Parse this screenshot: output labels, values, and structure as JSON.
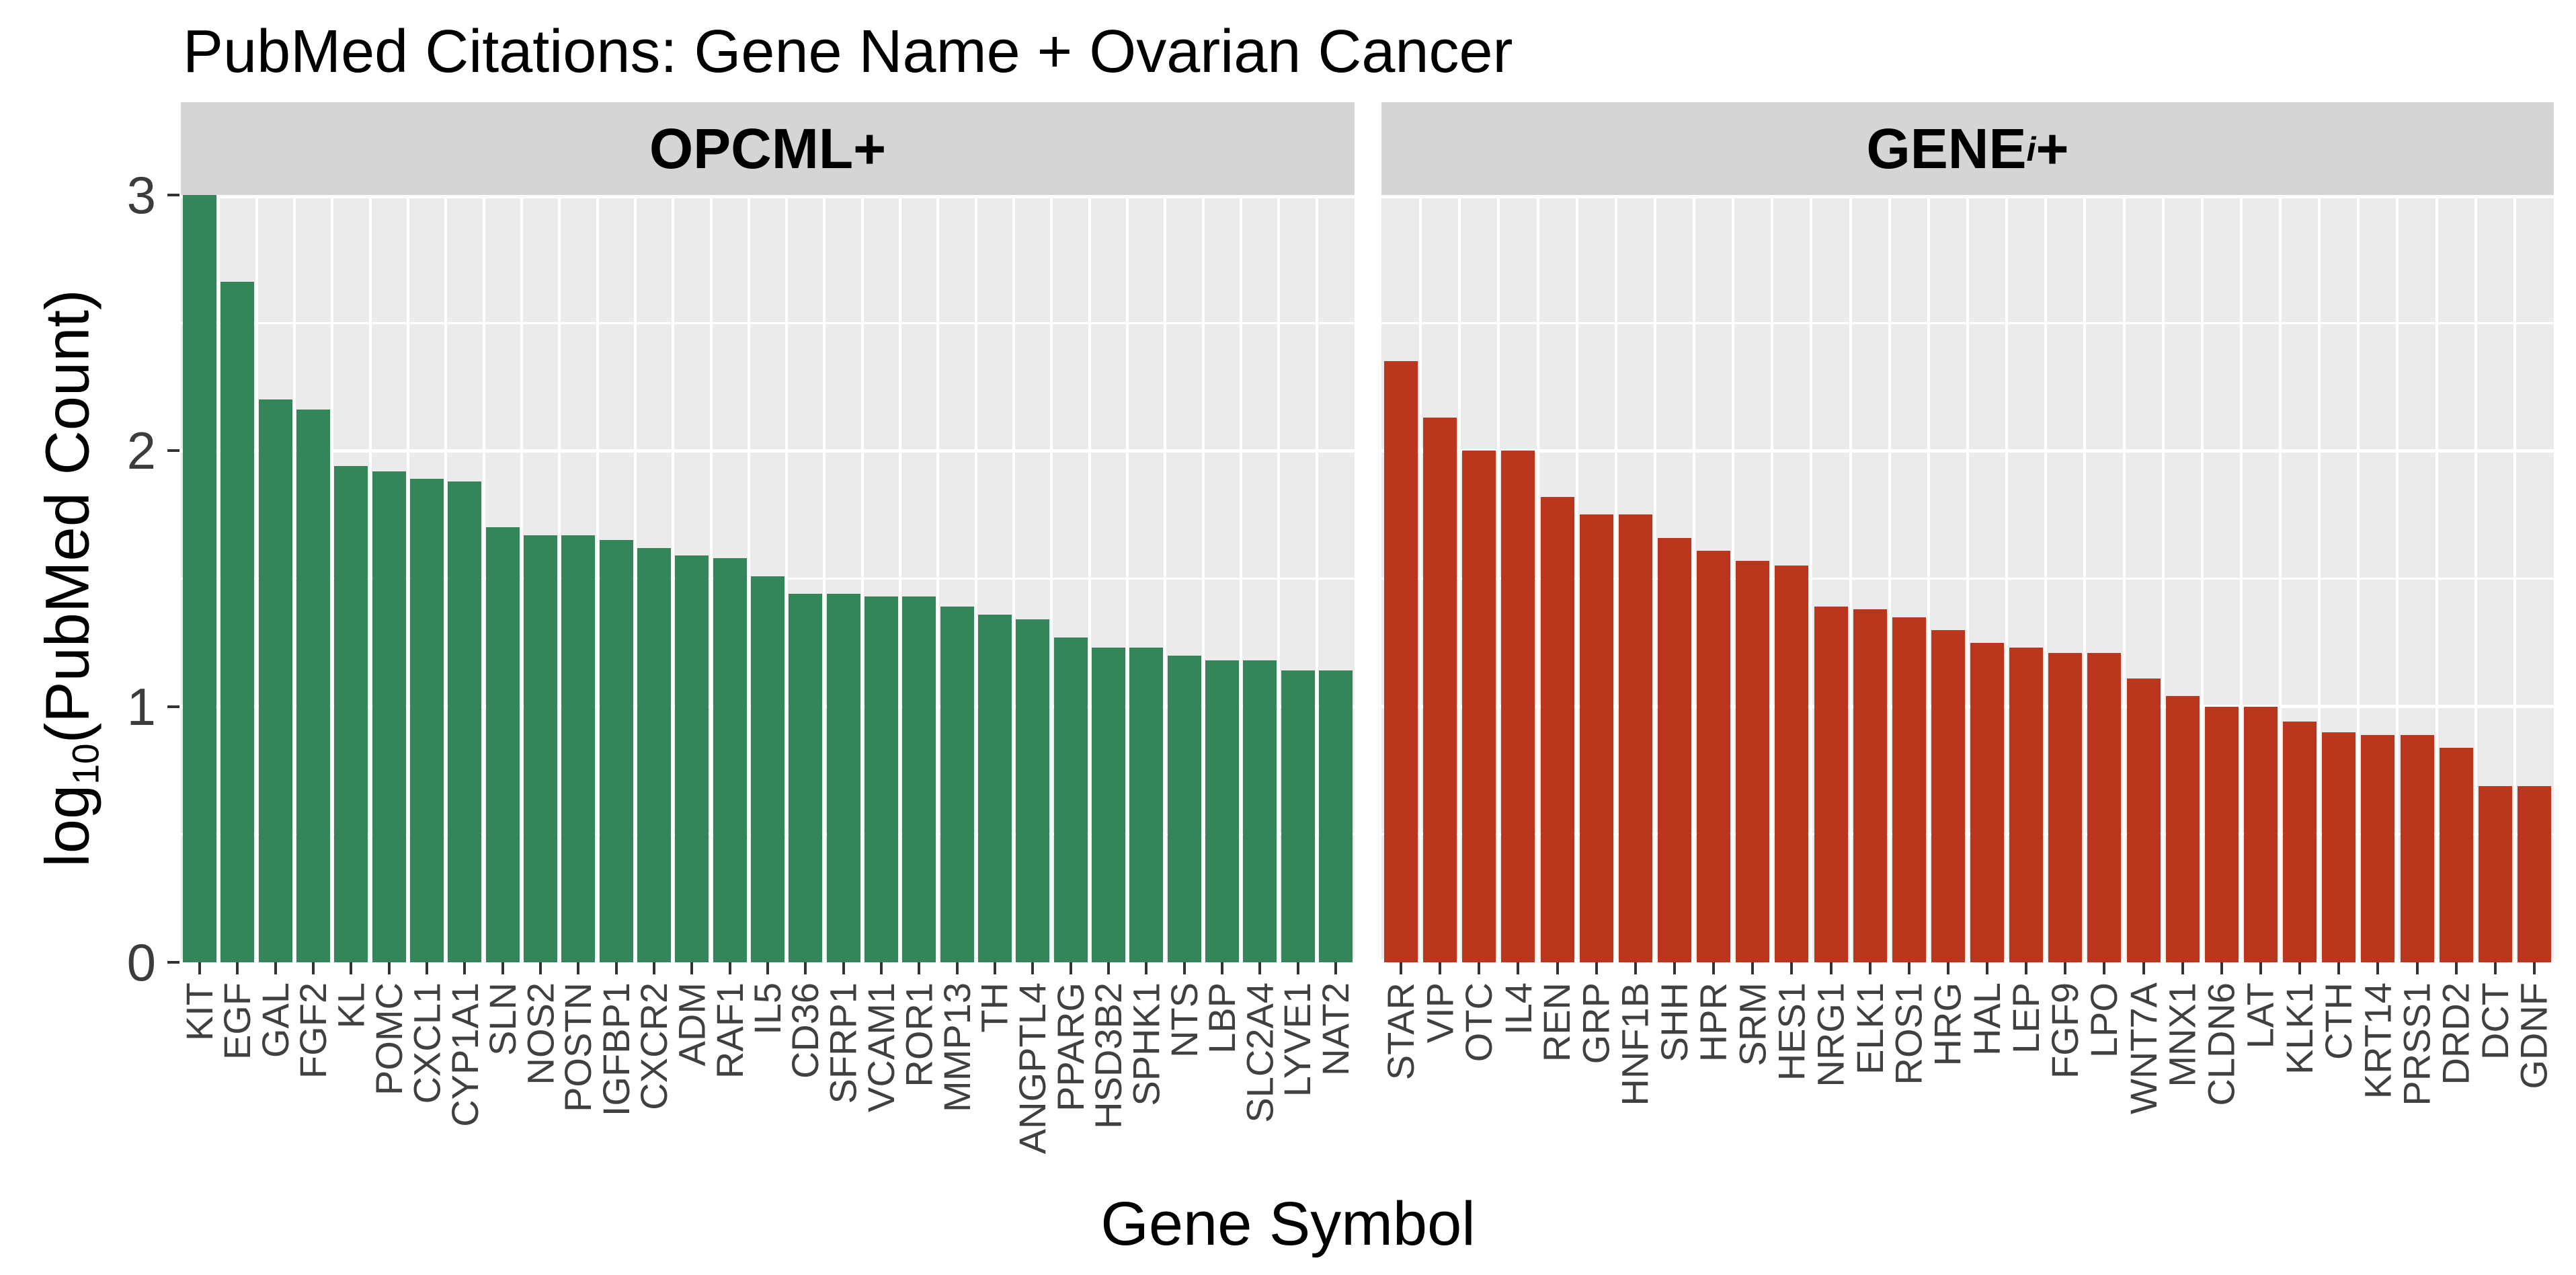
{
  "title": "PubMed Citations: Gene Name + Ovarian Cancer",
  "axes": {
    "x_title": "Gene Symbol",
    "y_title_main": "log",
    "y_title_sub": "10",
    "y_title_rest": "(PubMed Count)",
    "y_tick_labels": [
      "0",
      "1",
      "2",
      "3"
    ]
  },
  "colors": {
    "left_bar": "#35855B",
    "right_bar": "#BA371D",
    "panel_background": "#EBEBEB",
    "strip_background": "#D5D5D5",
    "gridline": "#FFFFFF",
    "tick": "#333333",
    "axis_text": "#3C3C3C",
    "gene_label_text": "#404040"
  },
  "chart_data": {
    "type": "bar",
    "title": "PubMed Citations: Gene Name + Ovarian Cancer",
    "xlabel": "Gene Symbol",
    "ylabel": "log10(PubMed Count)",
    "ylim": [
      0,
      3
    ],
    "y_major_ticks": [
      0,
      1,
      2,
      3
    ],
    "y_minor_ticks": [
      0.5,
      1.5,
      2.5
    ],
    "grid": "white major/minor gridlines on gray panel, white column separators",
    "legend_position": "none",
    "facets": [
      {
        "label": "OPCML+",
        "label_parts": {
          "main": "OPCML+",
          "sub": "",
          "rest": ""
        },
        "bar_color": "#35855B",
        "categories": [
          "KIT",
          "EGF",
          "GAL",
          "FGF2",
          "KL",
          "POMC",
          "CXCL1",
          "CYP1A1",
          "SLN",
          "NOS2",
          "POSTN",
          "IGFBP1",
          "CXCR2",
          "ADM",
          "RAF1",
          "IL5",
          "CD36",
          "SFRP1",
          "VCAM1",
          "ROR1",
          "MMP13",
          "TH",
          "ANGPTL4",
          "PPARG",
          "HSD3B2",
          "SPHK1",
          "NTS",
          "LBP",
          "SLC2A4",
          "LYVE1",
          "NAT2"
        ],
        "values": [
          3.0,
          2.66,
          2.2,
          2.16,
          1.94,
          1.92,
          1.89,
          1.88,
          1.7,
          1.67,
          1.67,
          1.65,
          1.62,
          1.59,
          1.58,
          1.51,
          1.44,
          1.44,
          1.43,
          1.43,
          1.39,
          1.36,
          1.34,
          1.27,
          1.23,
          1.23,
          1.2,
          1.18,
          1.18,
          1.14,
          1.14
        ]
      },
      {
        "label": "GENEi+",
        "label_parts": {
          "main": "GENE",
          "sub": "i",
          "rest": "+"
        },
        "bar_color": "#BA371D",
        "categories": [
          "STAR",
          "VIP",
          "OTC",
          "IL4",
          "REN",
          "GRP",
          "HNF1B",
          "SHH",
          "HPR",
          "SRM",
          "HES1",
          "NRG1",
          "ELK1",
          "ROS1",
          "HRG",
          "HAL",
          "LEP",
          "FGF9",
          "LPO",
          "WNT7A",
          "MNX1",
          "CLDN6",
          "LAT",
          "KLK1",
          "CTH",
          "KRT14",
          "PRSS1",
          "DRD2",
          "DCT",
          "GDNF"
        ],
        "values": [
          2.35,
          2.13,
          2.0,
          2.0,
          1.82,
          1.75,
          1.75,
          1.66,
          1.61,
          1.57,
          1.55,
          1.39,
          1.38,
          1.35,
          1.3,
          1.25,
          1.23,
          1.21,
          1.21,
          1.11,
          1.04,
          1.0,
          1.0,
          0.94,
          0.9,
          0.89,
          0.89,
          0.84,
          0.69,
          0.69
        ]
      }
    ]
  }
}
